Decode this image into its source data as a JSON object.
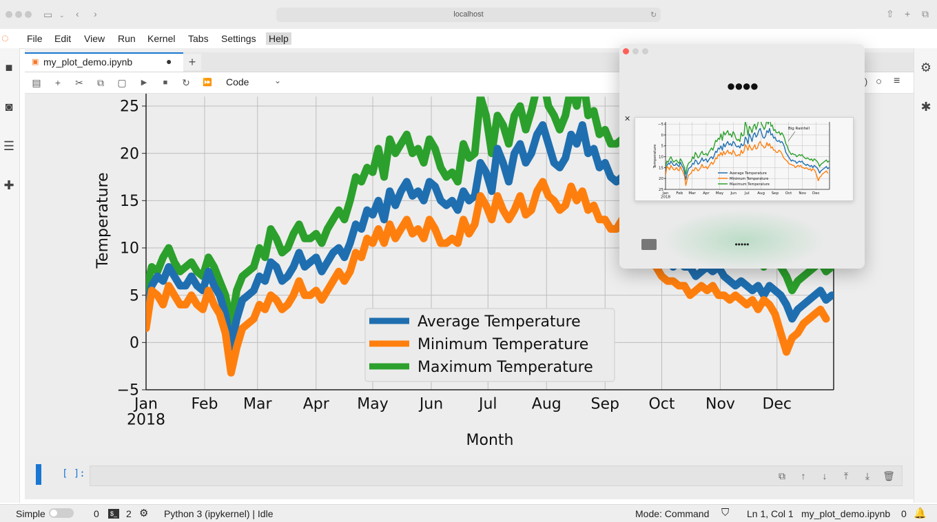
{
  "browser": {
    "url": "localhost"
  },
  "menu": [
    "File",
    "Edit",
    "View",
    "Run",
    "Kernel",
    "Tabs",
    "Settings",
    "Help"
  ],
  "tab": {
    "title": "my_plot_demo.ipynb",
    "new_tab_label": "+"
  },
  "toolbar": {
    "cell_type": "Code"
  },
  "cell": {
    "prompt": "[ ]:"
  },
  "statusbar": {
    "mode_label": "Simple",
    "terminals": "0",
    "kernels": "2",
    "kernel": "Python 3 (ipykernel) | Idle",
    "mode": "Mode: Command",
    "position": "Ln 1, Col 1",
    "file": "my_plot_demo.ipynb",
    "notifications": "0"
  },
  "popup": {
    "title": "●●●●",
    "caption": "•••••"
  },
  "colors": {
    "avg": "#1f6fb0",
    "min": "#ff7f0e",
    "max": "#2ca02c",
    "accent": "#1976d2"
  },
  "chart_data": {
    "type": "line",
    "xlabel": "Month",
    "ylabel": "Temperature",
    "x_ticks": [
      "Jan\n2018",
      "Feb",
      "Mar",
      "Apr",
      "May",
      "Jun",
      "Jul",
      "Aug",
      "Sep",
      "Oct",
      "Nov",
      "Dec"
    ],
    "ylim": [
      -5,
      26
    ],
    "y_ticks": [
      -5,
      0,
      5,
      10,
      15,
      20,
      25
    ],
    "grid": true,
    "legend_position": "lower center",
    "x_days": [
      0,
      3,
      6,
      9,
      12,
      15,
      18,
      21,
      24,
      27,
      30,
      33,
      36,
      39,
      42,
      45,
      48,
      51,
      54,
      57,
      60,
      63,
      66,
      69,
      72,
      75,
      78,
      81,
      84,
      87,
      90,
      93,
      96,
      99,
      102,
      105,
      108,
      111,
      114,
      117,
      120,
      123,
      126,
      129,
      132,
      135,
      138,
      141,
      144,
      147,
      150,
      153,
      156,
      159,
      162,
      165,
      168,
      171,
      174,
      177,
      180,
      183,
      186,
      189,
      192,
      195,
      198,
      201,
      204,
      207,
      210,
      213,
      216,
      219,
      222,
      225,
      228,
      231,
      234,
      237,
      240,
      243,
      246,
      249,
      252,
      255,
      258,
      261,
      264,
      267,
      270,
      273,
      276,
      279,
      282,
      285,
      288,
      291,
      294,
      297,
      300,
      303,
      306,
      309,
      312,
      315,
      318,
      321,
      324,
      327,
      330,
      333,
      336,
      339,
      342,
      345,
      348,
      351,
      354,
      357,
      360,
      363
    ],
    "series": [
      {
        "name": "Average Temperature",
        "values": [
          3.5,
          6,
          7,
          6.5,
          8,
          7,
          6,
          6,
          7,
          6,
          5.5,
          7.5,
          6,
          5,
          3,
          -0.5,
          2.5,
          4.5,
          5,
          5.5,
          7,
          6.5,
          8.5,
          8,
          6.5,
          7,
          8,
          9.5,
          8,
          8.5,
          9,
          7.5,
          8.5,
          9.5,
          10,
          9,
          10.5,
          12.5,
          12,
          14,
          13.5,
          15,
          13,
          16,
          14.5,
          16,
          17,
          15.5,
          16,
          15,
          17,
          16.5,
          15,
          14.5,
          15,
          14,
          16,
          15,
          15.5,
          19,
          18,
          16,
          20.5,
          19,
          17,
          20,
          21,
          19,
          20,
          22,
          23,
          21,
          19,
          18.5,
          19.5,
          22,
          21,
          23,
          20,
          20.5,
          18.5,
          19,
          17.5,
          17,
          17.5,
          16.5,
          17,
          16,
          14.5,
          12,
          11,
          10,
          9,
          8,
          8.5,
          8,
          8,
          7,
          7.5,
          8,
          7.5,
          8,
          7,
          6.5,
          6,
          6.5,
          6,
          5.5,
          6,
          5,
          6,
          5.5,
          5,
          4,
          2.5,
          3.5,
          4,
          4.5,
          5,
          5.5,
          4.5,
          5
        ]
      },
      {
        "name": "Minimum Temperature",
        "values": [
          1.5,
          5.5,
          5,
          4,
          6,
          5,
          4,
          4,
          5,
          4,
          3.5,
          5.5,
          4,
          3,
          1,
          -3.2,
          -0.5,
          1.5,
          2,
          2.5,
          4,
          3.5,
          5,
          4.5,
          3.5,
          4,
          5,
          6.5,
          5,
          5,
          5.5,
          4.5,
          5.5,
          6.5,
          7.5,
          6.5,
          7.5,
          9.5,
          9,
          11,
          10.5,
          12,
          10.5,
          12.5,
          11,
          12,
          13,
          11.5,
          12,
          11,
          13,
          12,
          10.5,
          10.5,
          11,
          10.5,
          13,
          11.5,
          12.5,
          15.5,
          14.5,
          13,
          15.5,
          14,
          13,
          14,
          15.5,
          13.5,
          14,
          16,
          17,
          15.5,
          15,
          14,
          14.5,
          16.5,
          15,
          16,
          14,
          14.5,
          13,
          13,
          12,
          12,
          13,
          12.5,
          11.5,
          10,
          9,
          8.5,
          8,
          7,
          6.5,
          6.5,
          6,
          6,
          5,
          5.5,
          6,
          5.5,
          6,
          5,
          5,
          4.5,
          5,
          4.5,
          4,
          4.5,
          3.5,
          4.5,
          4,
          3,
          1,
          -1,
          0.5,
          1,
          2,
          2.5,
          3,
          3.5,
          2.5
        ]
      },
      {
        "name": "Maximum Temperature",
        "values": [
          5.5,
          8,
          7.5,
          9,
          10,
          8.5,
          7.5,
          8,
          8.5,
          7.5,
          7,
          9,
          8,
          6.5,
          5,
          2,
          5.5,
          7,
          7.5,
          8,
          10,
          9,
          12,
          11,
          9.5,
          10,
          11.5,
          12.5,
          11,
          11,
          11.5,
          10.5,
          12,
          13,
          14,
          13,
          15,
          17.5,
          17,
          18.5,
          18,
          20.5,
          17.5,
          21.5,
          20,
          21,
          22,
          20,
          20.5,
          19,
          21.5,
          20.5,
          18.5,
          17.5,
          18,
          17,
          21,
          19.5,
          20,
          26,
          24,
          20,
          24,
          23,
          21,
          24,
          25,
          22.5,
          24.5,
          27,
          28,
          25,
          24,
          22.5,
          24,
          27,
          25,
          28.5,
          24,
          24.5,
          22,
          22.5,
          21,
          21,
          21.5,
          20,
          21,
          20,
          18.5,
          16,
          15,
          13,
          12,
          11,
          11.5,
          11,
          11,
          10,
          10.5,
          11,
          10.5,
          11,
          10,
          9.5,
          9,
          9.5,
          9,
          8.5,
          9,
          8,
          9,
          8.5,
          8,
          7,
          5.5,
          6.5,
          7,
          7.5,
          8,
          8.5,
          7.5,
          8
        ]
      }
    ]
  },
  "thumbnail": {
    "annotation": "Big Rainfall",
    "ylabel": "Temperature",
    "y_ticks": [
      "25",
      "20",
      "15",
      "10",
      "5",
      "0",
      "−5"
    ],
    "x_ticks": [
      "Jan\n2018",
      "Feb",
      "Mar",
      "Apr",
      "May",
      "Jun",
      "Jul",
      "Aug",
      "Sep",
      "Oct",
      "Nov",
      "Dec"
    ],
    "legend": [
      "Average Temperature",
      "Minimum Temperature",
      "Maximum Temperature"
    ]
  }
}
